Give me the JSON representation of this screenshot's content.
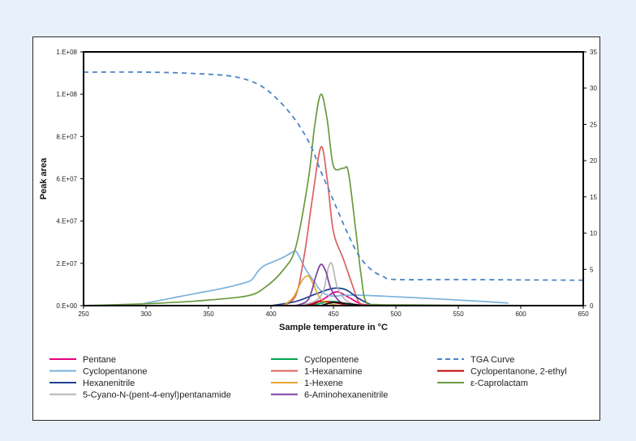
{
  "chart_data": {
    "type": "line",
    "xlabel": "Sample temperature in °C",
    "ylabel_left": "Peak area",
    "ylabel_right": "Sample mass in mg",
    "xlim": [
      250,
      650
    ],
    "ylim_left": [
      0,
      120000000
    ],
    "ylim_right": [
      0,
      35
    ],
    "x_ticks": [
      250,
      300,
      350,
      400,
      450,
      500,
      550,
      600,
      650
    ],
    "y_left_ticks": [
      0,
      20000000,
      40000000,
      60000000,
      80000000,
      100000000,
      120000000
    ],
    "y_left_tick_labels": [
      "0.E+00",
      "2.E+07",
      "4.E+07",
      "6.E+07",
      "8.E+07",
      "1.E+08",
      "1.E+08"
    ],
    "y_right_ticks": [
      0,
      5,
      10,
      15,
      20,
      25,
      30,
      35
    ],
    "grid": false,
    "legend_position": "bottom",
    "series": [
      {
        "name": "Pentane",
        "axis": "left",
        "color": "#e6007e",
        "dash": false,
        "points": [
          [
            400,
            0
          ],
          [
            425,
            300000
          ],
          [
            440,
            2500000
          ],
          [
            452,
            6500000
          ],
          [
            462,
            4000000
          ],
          [
            472,
            800000
          ],
          [
            485,
            0
          ]
        ]
      },
      {
        "name": "Cyclopentene",
        "axis": "left",
        "color": "#00a650",
        "dash": false,
        "points": [
          [
            420,
            0
          ],
          [
            435,
            500000
          ],
          [
            448,
            2000000
          ],
          [
            458,
            1200000
          ],
          [
            470,
            0
          ]
        ]
      },
      {
        "name": "TGA Curve",
        "axis": "right",
        "color": "#4a86c6",
        "dash": true,
        "points": [
          [
            250,
            32.2
          ],
          [
            300,
            32.2
          ],
          [
            340,
            32.0
          ],
          [
            370,
            31.6
          ],
          [
            390,
            30.5
          ],
          [
            405,
            28.5
          ],
          [
            420,
            25.5
          ],
          [
            432,
            22.0
          ],
          [
            440,
            18.5
          ],
          [
            450,
            14.5
          ],
          [
            460,
            10.5
          ],
          [
            470,
            7.0
          ],
          [
            480,
            5.0
          ],
          [
            490,
            4.0
          ],
          [
            500,
            3.6
          ],
          [
            550,
            3.6
          ],
          [
            600,
            3.55
          ],
          [
            650,
            3.5
          ]
        ]
      },
      {
        "name": "Cyclopentanone",
        "axis": "left",
        "color": "#7ab2dc",
        "dash": false,
        "points": [
          [
            290,
            0
          ],
          [
            300,
            1200000
          ],
          [
            320,
            3500000
          ],
          [
            340,
            5800000
          ],
          [
            360,
            8000000
          ],
          [
            380,
            11000000
          ],
          [
            385,
            12500000
          ],
          [
            390,
            16500000
          ],
          [
            395,
            19000000
          ],
          [
            405,
            21500000
          ],
          [
            412,
            23500000
          ],
          [
            418,
            25500000
          ],
          [
            421,
            25000000
          ],
          [
            428,
            17000000
          ],
          [
            435,
            11000000
          ],
          [
            440,
            7000000
          ],
          [
            448,
            4600000
          ],
          [
            465,
            5000000
          ],
          [
            490,
            4500000
          ],
          [
            520,
            3600000
          ],
          [
            560,
            2300000
          ],
          [
            590,
            1200000
          ]
        ]
      },
      {
        "name": "1-Hexanamine",
        "axis": "left",
        "color": "#d9625e",
        "dash": false,
        "points": [
          [
            410,
            0
          ],
          [
            420,
            5000000
          ],
          [
            427,
            25000000
          ],
          [
            433,
            50000000
          ],
          [
            440,
            75000000
          ],
          [
            445,
            60000000
          ],
          [
            450,
            35000000
          ],
          [
            458,
            22000000
          ],
          [
            465,
            10000000
          ],
          [
            470,
            2000000
          ],
          [
            475,
            0
          ]
        ]
      },
      {
        "name": "Cyclopentanone, 2-ethyl",
        "axis": "left",
        "color": "#c00000",
        "dash": false,
        "points": [
          [
            420,
            0
          ],
          [
            432,
            500000
          ],
          [
            440,
            2000000
          ],
          [
            450,
            1500000
          ],
          [
            460,
            500000
          ],
          [
            470,
            0
          ]
        ]
      },
      {
        "name": "Hexanenitrile",
        "axis": "left",
        "color": "#1f3f8f",
        "dash": false,
        "points": [
          [
            400,
            0
          ],
          [
            420,
            2000000
          ],
          [
            438,
            6000000
          ],
          [
            450,
            8200000
          ],
          [
            460,
            7500000
          ],
          [
            470,
            3500000
          ],
          [
            480,
            500000
          ],
          [
            490,
            0
          ]
        ]
      },
      {
        "name": "1-Hexene",
        "axis": "left",
        "color": "#e6a430",
        "dash": false,
        "points": [
          [
            410,
            0
          ],
          [
            418,
            4000000
          ],
          [
            425,
            12000000
          ],
          [
            430,
            14000000
          ],
          [
            434,
            10000000
          ],
          [
            440,
            3000000
          ],
          [
            450,
            500000
          ],
          [
            460,
            0
          ]
        ]
      },
      {
        "name": "ε-Caprolactam",
        "axis": "left",
        "color": "#6a9a3e",
        "dash": false,
        "points": [
          [
            250,
            0
          ],
          [
            300,
            900000
          ],
          [
            340,
            2200000
          ],
          [
            380,
            4500000
          ],
          [
            395,
            8500000
          ],
          [
            410,
            17000000
          ],
          [
            420,
            28000000
          ],
          [
            430,
            60000000
          ],
          [
            435,
            85000000
          ],
          [
            440,
            100000000
          ],
          [
            445,
            88000000
          ],
          [
            450,
            66000000
          ],
          [
            458,
            65000000
          ],
          [
            462,
            63000000
          ],
          [
            468,
            35000000
          ],
          [
            472,
            15000000
          ],
          [
            476,
            2000000
          ],
          [
            485,
            500000
          ],
          [
            520,
            300000
          ],
          [
            560,
            100000
          ],
          [
            600,
            0
          ]
        ]
      },
      {
        "name": "5-Cyano-N-(pent-4-enyl)pentanamide",
        "axis": "left",
        "color": "#b7b7b7",
        "dash": false,
        "points": [
          [
            420,
            0
          ],
          [
            435,
            2000000
          ],
          [
            442,
            7000000
          ],
          [
            446,
            18000000
          ],
          [
            449,
            19500000
          ],
          [
            453,
            9000000
          ],
          [
            460,
            2500000
          ],
          [
            470,
            0
          ]
        ]
      },
      {
        "name": "6-Aminohexanenitrile",
        "axis": "left",
        "color": "#7b3fa0",
        "dash": false,
        "points": [
          [
            420,
            0
          ],
          [
            430,
            3000000
          ],
          [
            436,
            14000000
          ],
          [
            440,
            19500000
          ],
          [
            444,
            16000000
          ],
          [
            448,
            8000000
          ],
          [
            455,
            2000000
          ],
          [
            465,
            0
          ]
        ]
      },
      {
        "name": "",
        "axis": "left",
        "color": "#111111",
        "dash": false,
        "points": [
          [
            440,
            0
          ],
          [
            450,
            1500000
          ],
          [
            460,
            1000000
          ],
          [
            475,
            0
          ]
        ]
      }
    ]
  }
}
